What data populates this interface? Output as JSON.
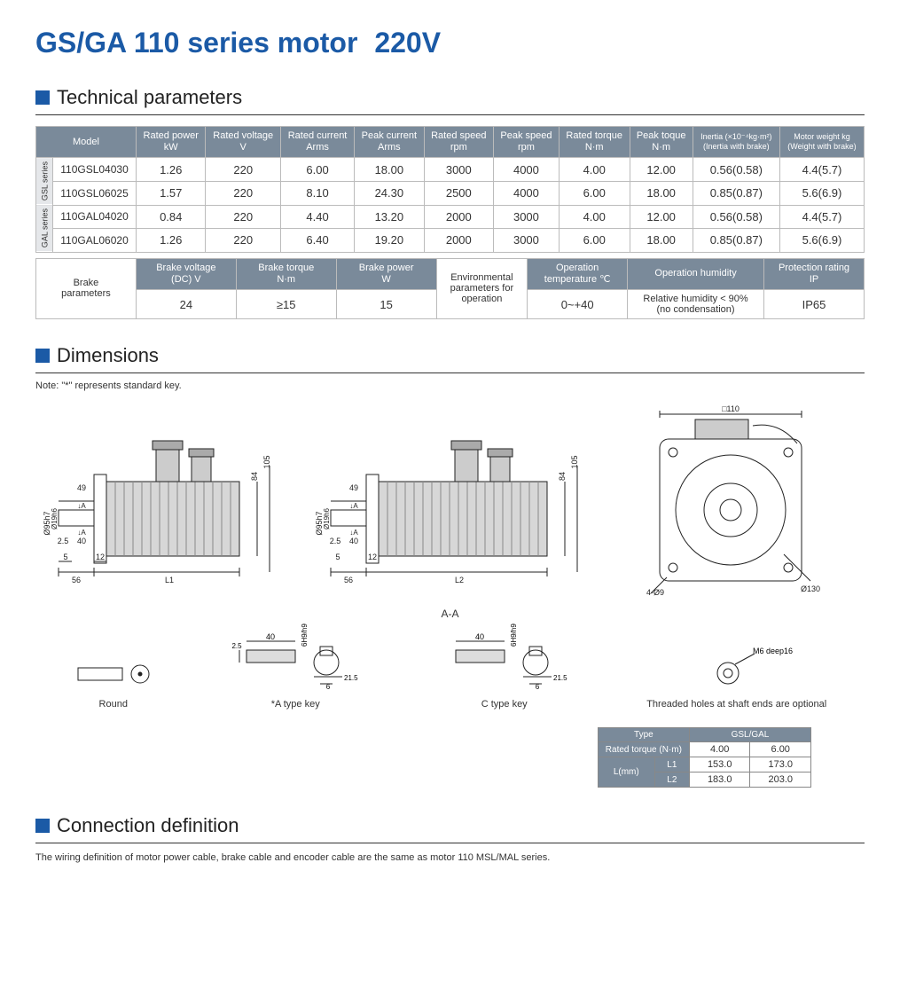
{
  "title_main": "GS/GA 110 series motor",
  "title_volt": "220V",
  "sections": {
    "tech": "Technical parameters",
    "dim": "Dimensions",
    "conn": "Connection definition"
  },
  "spec_table": {
    "headers": [
      "Model",
      "Rated power\nkW",
      "Rated voltage\nV",
      "Rated current\nArms",
      "Peak current\nArms",
      "Rated speed\nrpm",
      "Peak speed\nrpm",
      "Rated torque\nN·m",
      "Peak toque\nN·m",
      "Inertia (×10⁻⁴kg·m²)\n(Inertia with brake)",
      "Motor weight kg\n(Weight with brake)"
    ],
    "groups": [
      {
        "label": "GSL series",
        "rows": [
          {
            "model": "110GSL04030",
            "vals": [
              "1.26",
              "220",
              "6.00",
              "18.00",
              "3000",
              "4000",
              "4.00",
              "12.00",
              "0.56(0.58)",
              "4.4(5.7)"
            ]
          },
          {
            "model": "110GSL06025",
            "vals": [
              "1.57",
              "220",
              "8.10",
              "24.30",
              "2500",
              "4000",
              "6.00",
              "18.00",
              "0.85(0.87)",
              "5.6(6.9)"
            ]
          }
        ]
      },
      {
        "label": "GAL series",
        "rows": [
          {
            "model": "110GAL04020",
            "vals": [
              "0.84",
              "220",
              "4.40",
              "13.20",
              "2000",
              "3000",
              "4.00",
              "12.00",
              "0.56(0.58)",
              "4.4(5.7)"
            ]
          },
          {
            "model": "110GAL06020",
            "vals": [
              "1.26",
              "220",
              "6.40",
              "19.20",
              "2000",
              "3000",
              "6.00",
              "18.00",
              "0.85(0.87)",
              "5.6(6.9)"
            ]
          }
        ]
      }
    ]
  },
  "brake_table": {
    "brake_lbl": "Brake\nparameters",
    "env_lbl": "Environmental\nparameters for\noperation",
    "cols": [
      {
        "h": "Brake voltage\n(DC) V",
        "v": "24"
      },
      {
        "h": "Brake torque\nN·m",
        "v": "≥15"
      },
      {
        "h": "Brake power\nW",
        "v": "15"
      }
    ],
    "env_cols": [
      {
        "h": "Operation\ntemperature ℃",
        "v": "0~+40"
      },
      {
        "h": "Operation humidity",
        "v": "Relative humidity < 90%\n(no condensation)"
      },
      {
        "h": "Protection rating\nIP",
        "v": "IP65"
      }
    ]
  },
  "dim_note": "Note: \"*\" represents standard key.",
  "aa_label": "A-A",
  "key_labels": {
    "round": "Round",
    "atype": "*A type key",
    "ctype": "C type key",
    "thread": "Threaded holes at shaft ends are optional",
    "m6": "M6 deep16"
  },
  "drawing_dims": {
    "sq110": "□110",
    "d95": "Ø95h7",
    "d19": "Ø19h6",
    "h84": "84",
    "h105": "105",
    "w49": "49",
    "a40": "40",
    "t25": "2.5",
    "s5": "5",
    "s12": "12",
    "s56": "56",
    "L1": "L1",
    "L2": "L2",
    "A": "A",
    "fourO9": "4-Ø9",
    "d130": "Ø130",
    "k40": "40",
    "k6": "6",
    "k215": "21.5",
    "k6h9": "6H9/h9"
  },
  "len_table": {
    "type_h": "Type",
    "gsl_h": "GSL/GAL",
    "torque_h": "Rated torque (N·m)",
    "lmm_h": "L(mm)",
    "torques": [
      "4.00",
      "6.00"
    ],
    "L1": [
      "153.0",
      "173.0"
    ],
    "L2": [
      "183.0",
      "203.0"
    ],
    "L1_lbl": "L1",
    "L2_lbl": "L2"
  },
  "conn_text": "The wiring definition of motor power cable, brake cable and encoder cable are the same as motor 110 MSL/MAL series.",
  "colors": {
    "brand": "#1b5aa6",
    "table_header": "#7a8a9a",
    "border": "#bbbbbb"
  }
}
